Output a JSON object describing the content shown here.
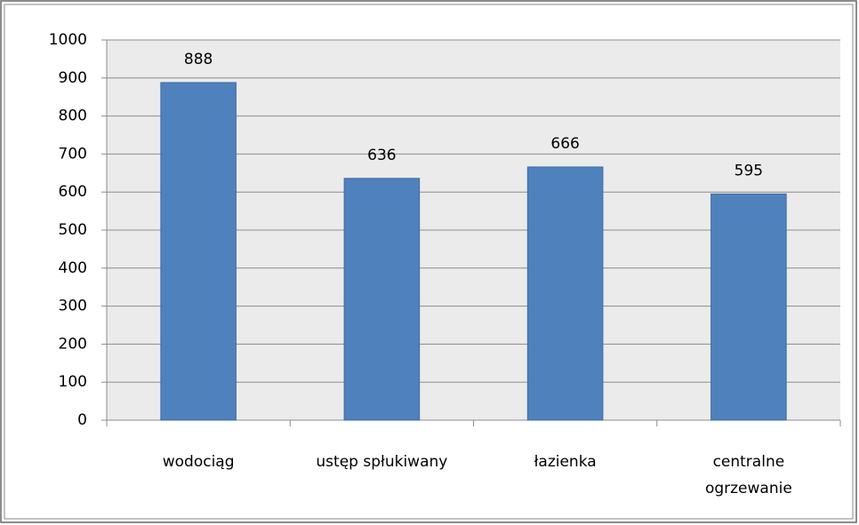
{
  "chart_data": {
    "type": "bar",
    "categories": [
      "wodociąg",
      "ustęp spłukiwany",
      "łazienka",
      "centralne ogrzewanie"
    ],
    "values": [
      888,
      636,
      666,
      595
    ],
    "color": "#4f81bd",
    "ylim": [
      0,
      1000
    ],
    "yticks": [
      0,
      100,
      200,
      300,
      400,
      500,
      600,
      700,
      800,
      900,
      1000
    ],
    "grid": true
  }
}
